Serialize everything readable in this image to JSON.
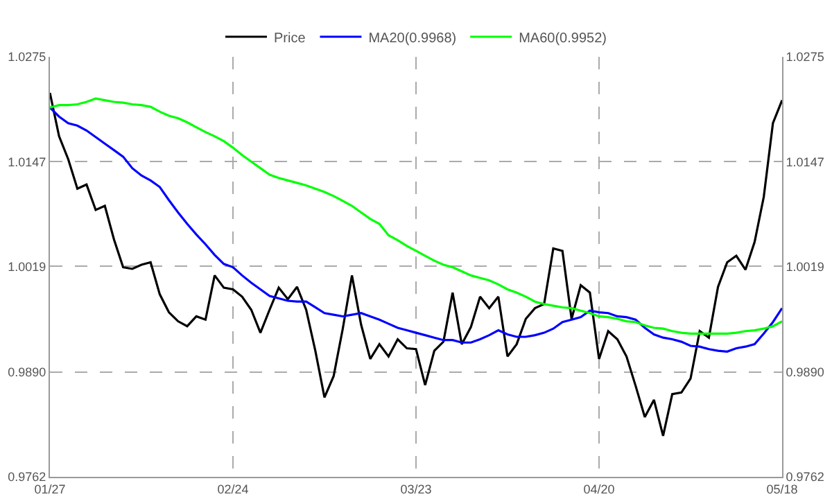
{
  "chart_data": {
    "type": "line",
    "legend": "top",
    "grid": true,
    "marker": "none",
    "line_style": "solid",
    "categories": [
      "01/27",
      null,
      null,
      null,
      null,
      null,
      null,
      null,
      null,
      null,
      null,
      null,
      null,
      null,
      null,
      null,
      null,
      null,
      null,
      null,
      "02/24",
      null,
      null,
      null,
      null,
      null,
      null,
      null,
      null,
      null,
      null,
      null,
      null,
      null,
      null,
      null,
      null,
      null,
      null,
      null,
      "03/23",
      null,
      null,
      null,
      null,
      null,
      null,
      null,
      null,
      null,
      null,
      null,
      null,
      null,
      null,
      null,
      null,
      null,
      null,
      null,
      "04/20",
      null,
      null,
      null,
      null,
      null,
      null,
      null,
      null,
      null,
      null,
      null,
      null,
      null,
      null,
      null,
      null,
      null,
      null,
      null,
      "05/18"
    ],
    "ylim": [
      0.9762,
      1.0275
    ],
    "yticks": [
      0.9762,
      {
        "value": 0.989,
        "label": "0.9890"
      },
      1.0019,
      1.0147,
      1.0275
    ],
    "y2lim": [
      0.9762,
      1.0275
    ],
    "y2ticks": [
      0.9762,
      {
        "value": 0.989,
        "label": "0.9890"
      },
      1.0019,
      1.0147,
      1.0275
    ],
    "series": [
      {
        "name": "Price",
        "color": "#000000",
        "values": [
          1.0231,
          1.0178,
          1.015,
          1.0114,
          1.0119,
          1.0088,
          1.0093,
          1.0052,
          1.0018,
          1.0016,
          1.0021,
          1.0024,
          0.9985,
          0.9963,
          0.9952,
          0.9946,
          0.9958,
          0.9954,
          1.0008,
          0.9993,
          0.9991,
          0.9982,
          0.9966,
          0.9938,
          0.9966,
          0.9993,
          0.9979,
          0.9994,
          0.9966,
          0.9916,
          0.9859,
          0.9885,
          0.9943,
          1.0008,
          0.9948,
          0.9906,
          0.9924,
          0.9909,
          0.993,
          0.9919,
          0.9918,
          0.9874,
          0.9916,
          0.9927,
          0.9987,
          0.9924,
          0.9945,
          0.9982,
          0.9968,
          0.9982,
          0.9909,
          0.9924,
          0.9955,
          0.9968,
          0.9973,
          1.0041,
          1.0038,
          0.9955,
          0.9996,
          0.9987,
          0.9906,
          0.994,
          0.993,
          0.9909,
          0.9873,
          0.9835,
          0.9856,
          0.9812,
          0.9863,
          0.9865,
          0.9882,
          0.994,
          0.9932,
          0.9994,
          1.0024,
          1.0032,
          1.0015,
          1.0049,
          1.0104,
          1.0194,
          1.0222
        ]
      },
      {
        "name": "MA20(0.9968)",
        "color": "#0000ff",
        "values": [
          1.0213,
          1.0202,
          1.0194,
          1.0191,
          1.0185,
          1.0177,
          1.0169,
          1.0161,
          1.0153,
          1.0139,
          1.013,
          1.0124,
          1.0116,
          1.01,
          1.0085,
          1.0071,
          1.0058,
          1.0046,
          1.0033,
          1.0022,
          1.0018,
          1.0008,
          0.9999,
          0.9991,
          0.9983,
          0.998,
          0.9977,
          0.9976,
          0.9976,
          0.9969,
          0.9962,
          0.996,
          0.9958,
          0.996,
          0.9962,
          0.9958,
          0.9954,
          0.9949,
          0.9944,
          0.9941,
          0.9938,
          0.9935,
          0.9932,
          0.9929,
          0.9929,
          0.9926,
          0.9926,
          0.993,
          0.9935,
          0.9941,
          0.9936,
          0.9933,
          0.9933,
          0.9935,
          0.9938,
          0.9943,
          0.9951,
          0.9954,
          0.9957,
          0.9965,
          0.9963,
          0.9962,
          0.9958,
          0.9957,
          0.9954,
          0.9944,
          0.9936,
          0.9932,
          0.993,
          0.9927,
          0.9922,
          0.9921,
          0.9918,
          0.9916,
          0.9915,
          0.9919,
          0.9921,
          0.9924,
          0.9937,
          0.9951,
          0.9968
        ]
      },
      {
        "name": "MA60(0.9952)",
        "color": "#00ff00",
        "values": [
          1.0213,
          1.0216,
          1.0216,
          1.0217,
          1.022,
          1.0224,
          1.0222,
          1.022,
          1.0219,
          1.0217,
          1.0216,
          1.0214,
          1.0208,
          1.0203,
          1.02,
          1.0195,
          1.0189,
          1.0183,
          1.0178,
          1.0172,
          1.0164,
          1.0155,
          1.0147,
          1.0139,
          1.0131,
          1.0127,
          1.0124,
          1.0121,
          1.0118,
          1.0114,
          1.011,
          1.0105,
          1.0099,
          1.0093,
          1.0085,
          1.0077,
          1.0071,
          1.0057,
          1.0051,
          1.0044,
          1.0038,
          1.0032,
          1.0026,
          1.0021,
          1.0018,
          1.0013,
          1.0008,
          1.0005,
          1.0002,
          0.9997,
          0.9991,
          0.9987,
          0.9982,
          0.9976,
          0.9973,
          0.9971,
          0.9969,
          0.9968,
          0.9965,
          0.9962,
          0.9958,
          0.9957,
          0.9955,
          0.9952,
          0.9951,
          0.9947,
          0.9944,
          0.9943,
          0.994,
          0.9938,
          0.9937,
          0.9937,
          0.9937,
          0.9937,
          0.9937,
          0.9938,
          0.994,
          0.9941,
          0.9943,
          0.9946,
          0.9952
        ]
      }
    ]
  }
}
